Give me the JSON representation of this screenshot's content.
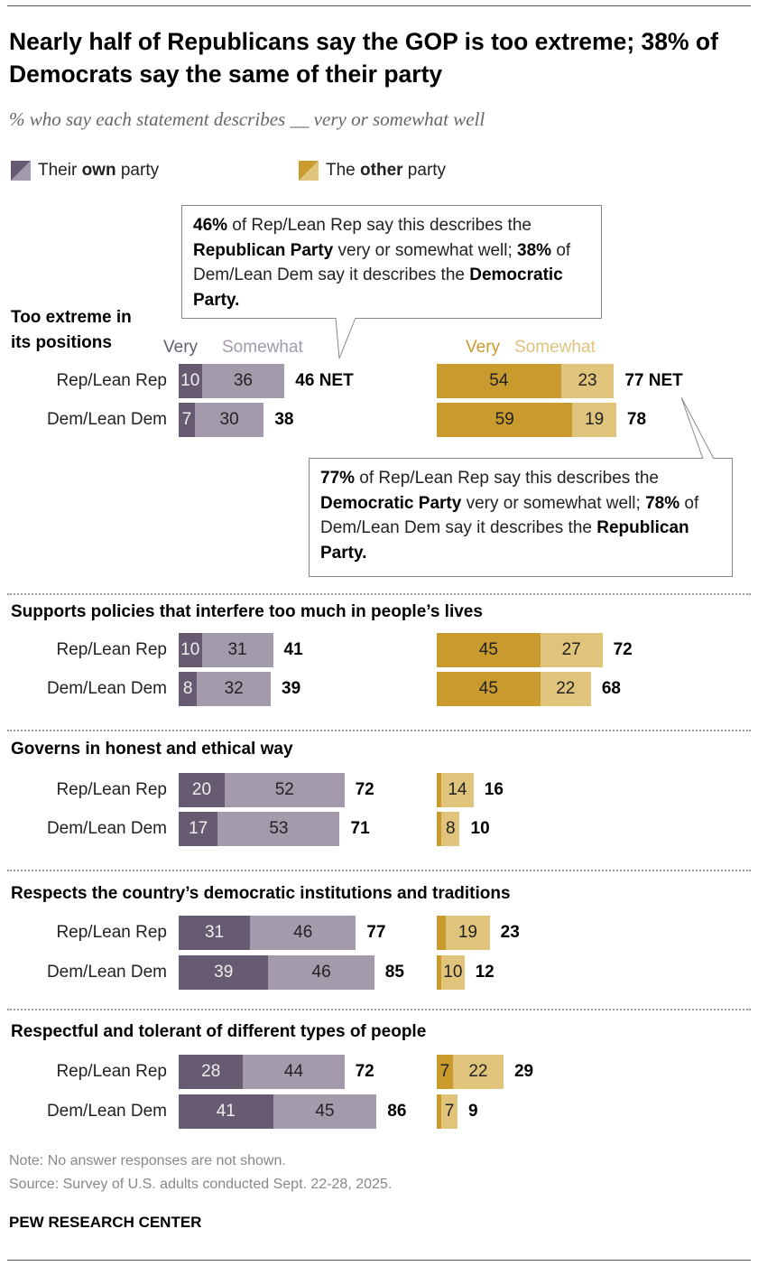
{
  "title": "Nearly half of Republicans say the GOP is too extreme; 38% of Democrats say the same of their party",
  "subtitle": "% who say each statement describes __ very or somewhat well",
  "legend": {
    "own_pre": "Their ",
    "own_bold": "own",
    "own_post": " party",
    "other_pre": "The ",
    "other_bold": "other",
    "other_post": " party"
  },
  "column_headers": {
    "very": "Very",
    "somewhat": "Somewhat"
  },
  "callout1": {
    "p1": "46%",
    "t1": " of Rep/Lean Rep say this describes the ",
    "p2": "Republican Party",
    "t2": " very or somewhat well; ",
    "p3": "38%",
    "t3": " of Dem/Lean Dem say it describes the ",
    "p4": "Democratic Party."
  },
  "callout2": {
    "p1": "77%",
    "t1": " of Rep/Lean Rep say this describes the ",
    "p2": "Democratic Party",
    "t2": " very or somewhat well; ",
    "p3": "78%",
    "t3": " of Dem/Lean Dem say it describes the ",
    "p4": "Republican Party."
  },
  "colors": {
    "own_very": "#675b72",
    "own_somewhat": "#a39aab",
    "other_very": "#c99a2e",
    "other_somewhat": "#e0c47c"
  },
  "chart_data": {
    "type": "bar",
    "stacked": true,
    "groups": [
      "Rep/Lean Rep",
      "Dem/Lean Dem"
    ],
    "series": [
      "Very",
      "Somewhat"
    ],
    "statements": [
      {
        "label": "Too extreme in its positions",
        "rows": [
          {
            "group": "Rep/Lean Rep",
            "own": {
              "very": 10,
              "somewhat": 36,
              "net": "46 NET"
            },
            "other": {
              "very": 54,
              "somewhat": 23,
              "net": "77 NET"
            }
          },
          {
            "group": "Dem/Lean Dem",
            "own": {
              "very": 7,
              "somewhat": 30,
              "net": "38"
            },
            "other": {
              "very": 59,
              "somewhat": 19,
              "net": "78"
            }
          }
        ]
      },
      {
        "label": "Supports policies that interfere too much in people’s lives",
        "rows": [
          {
            "group": "Rep/Lean Rep",
            "own": {
              "very": 10,
              "somewhat": 31,
              "net": "41"
            },
            "other": {
              "very": 45,
              "somewhat": 27,
              "net": "72"
            }
          },
          {
            "group": "Dem/Lean Dem",
            "own": {
              "very": 8,
              "somewhat": 32,
              "net": "39"
            },
            "other": {
              "very": 45,
              "somewhat": 22,
              "net": "68"
            }
          }
        ]
      },
      {
        "label": "Governs in honest and ethical way",
        "rows": [
          {
            "group": "Rep/Lean Rep",
            "own": {
              "very": 20,
              "somewhat": 52,
              "net": "72"
            },
            "other": {
              "very": 2,
              "somewhat": 14,
              "net": "16"
            }
          },
          {
            "group": "Dem/Lean Dem",
            "own": {
              "very": 17,
              "somewhat": 53,
              "net": "71"
            },
            "other": {
              "very": 2,
              "somewhat": 8,
              "net": "10"
            }
          }
        ]
      },
      {
        "label": "Respects the country’s democratic institutions and traditions",
        "rows": [
          {
            "group": "Rep/Lean Rep",
            "own": {
              "very": 31,
              "somewhat": 46,
              "net": "77"
            },
            "other": {
              "very": 4,
              "somewhat": 19,
              "net": "23"
            }
          },
          {
            "group": "Dem/Lean Dem",
            "own": {
              "very": 39,
              "somewhat": 46,
              "net": "85"
            },
            "other": {
              "very": 2,
              "somewhat": 10,
              "net": "12"
            }
          }
        ]
      },
      {
        "label": "Respectful and tolerant of different types of people",
        "rows": [
          {
            "group": "Rep/Lean Rep",
            "own": {
              "very": 28,
              "somewhat": 44,
              "net": "72"
            },
            "other": {
              "very": 7,
              "somewhat": 22,
              "net": "29"
            }
          },
          {
            "group": "Dem/Lean Dem",
            "own": {
              "very": 41,
              "somewhat": 45,
              "net": "86"
            },
            "other": {
              "very": 2,
              "somewhat": 7,
              "net": "9"
            }
          }
        ]
      }
    ]
  },
  "section1_label_line1": "Too extreme in",
  "section1_label_line2": "its positions",
  "note": "Note: No answer responses are not shown.",
  "source": "Source: Survey of U.S. adults conducted Sept. 22-28, 2025.",
  "brand": "PEW RESEARCH CENTER"
}
